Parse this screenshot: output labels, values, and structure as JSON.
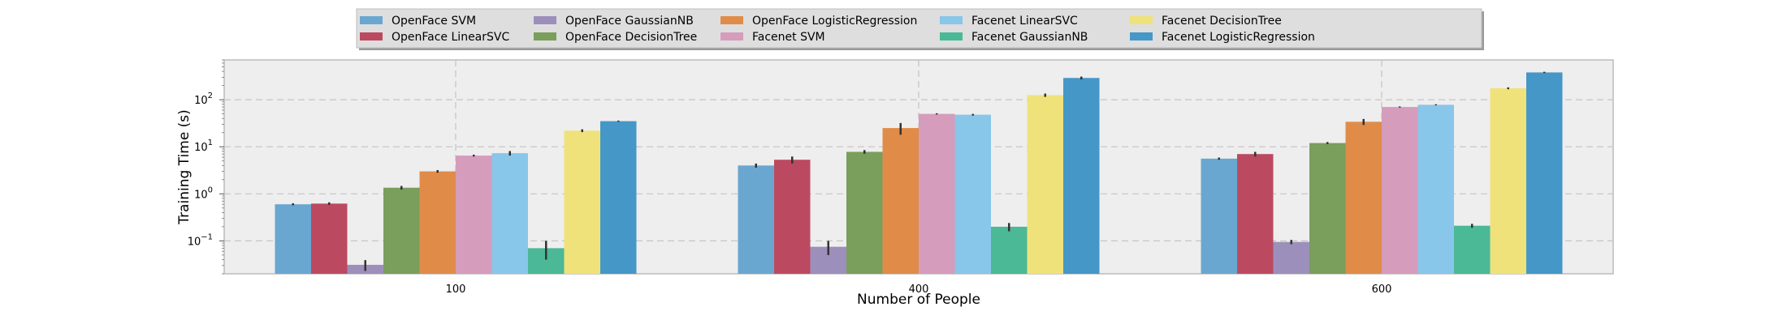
{
  "chart_data": {
    "type": "bar",
    "title": "",
    "xlabel": "Number of People",
    "ylabel": "Training Time (s)",
    "yscale": "log",
    "ylim": [
      0.02,
      700
    ],
    "grid": true,
    "legend_position": "top-center",
    "categories": [
      "100",
      "400",
      "600"
    ],
    "ytick_labels": [
      {
        "value": 0.1,
        "base": "10",
        "exp": "−1"
      },
      {
        "value": 1,
        "base": "10",
        "exp": "0"
      },
      {
        "value": 10,
        "base": "10",
        "exp": "1"
      },
      {
        "value": 100,
        "base": "10",
        "exp": "2"
      }
    ],
    "series": [
      {
        "name": "OpenFace SVM",
        "color": "#6aa7d0",
        "values": [
          0.6,
          4.0,
          5.6
        ],
        "err": [
          0.03,
          0.4,
          0.3
        ]
      },
      {
        "name": "OpenFace LinearSVC",
        "color": "#bb4a60",
        "values": [
          0.62,
          5.3,
          7.0
        ],
        "err": [
          0.04,
          0.9,
          0.8
        ]
      },
      {
        "name": "OpenFace GaussianNB",
        "color": "#9d8fbc",
        "values": [
          0.031,
          0.075,
          0.095
        ],
        "err": [
          0.008,
          0.025,
          0.01
        ]
      },
      {
        "name": "OpenFace DecisionTree",
        "color": "#7a9e5c",
        "values": [
          1.35,
          7.8,
          12.0
        ],
        "err": [
          0.12,
          0.7,
          0.6
        ]
      },
      {
        "name": "OpenFace LogisticRegression",
        "color": "#e08c48",
        "values": [
          3.0,
          25.0,
          34.0
        ],
        "err": [
          0.2,
          7.0,
          5.0
        ]
      },
      {
        "name": "Facenet SVM",
        "color": "#d69cbb",
        "values": [
          6.5,
          50.0,
          70.0
        ],
        "err": [
          0.3,
          1.5,
          2.0
        ]
      },
      {
        "name": "Facenet LinearSVC",
        "color": "#88c6ea",
        "values": [
          7.3,
          48.0,
          78.0
        ],
        "err": [
          0.8,
          2.0,
          2.0
        ]
      },
      {
        "name": "Facenet GaussianNB",
        "color": "#4bb896",
        "values": [
          0.07,
          0.2,
          0.21
        ],
        "err": [
          0.03,
          0.04,
          0.02
        ]
      },
      {
        "name": "Facenet DecisionTree",
        "color": "#f0e27a",
        "values": [
          22.0,
          125.0,
          175.0
        ],
        "err": [
          1.5,
          10.0,
          8.0
        ]
      },
      {
        "name": "Facenet LogisticRegression",
        "color": "#4597c8",
        "values": [
          35.0,
          290.0,
          380.0
        ],
        "err": [
          1.0,
          20.0,
          12.0
        ]
      }
    ]
  }
}
